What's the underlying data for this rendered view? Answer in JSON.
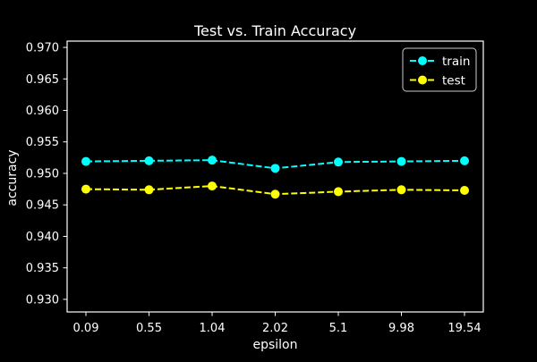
{
  "chart_data": {
    "type": "line",
    "title": "Test vs. Train Accuracy",
    "xlabel": "epsilon",
    "ylabel": "accuracy",
    "categories": [
      "0.09",
      "0.55",
      "1.04",
      "2.02",
      "5.1",
      "9.98",
      "19.54"
    ],
    "ylim": [
      0.928,
      0.971
    ],
    "yticks": [
      "0.930",
      "0.935",
      "0.940",
      "0.945",
      "0.950",
      "0.955",
      "0.960",
      "0.965",
      "0.970"
    ],
    "grid": false,
    "legend_position": "top-right",
    "series": [
      {
        "name": "train",
        "color": "#00ffff",
        "linestyle": "dashed",
        "marker": "circle",
        "values": [
          0.9519,
          0.952,
          0.9521,
          0.9508,
          0.9518,
          0.9519,
          0.952
        ]
      },
      {
        "name": "test",
        "color": "#ffff00",
        "linestyle": "dashed",
        "marker": "circle",
        "values": [
          0.9475,
          0.9474,
          0.948,
          0.9467,
          0.9471,
          0.9474,
          0.9473
        ]
      }
    ],
    "background": "#000000",
    "foreground": "#ffffff"
  }
}
